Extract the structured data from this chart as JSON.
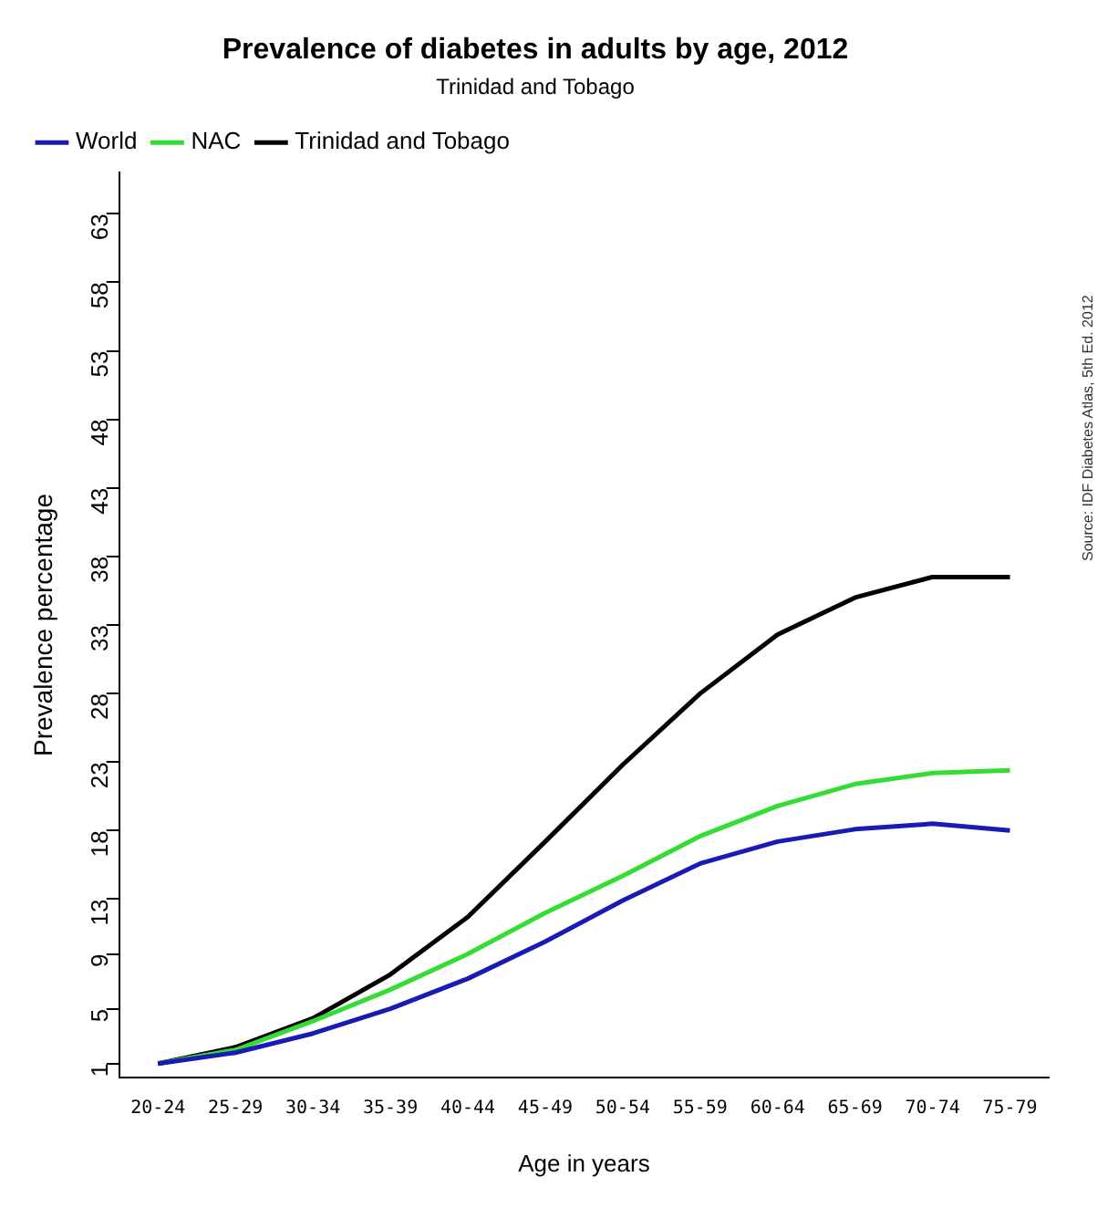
{
  "chart_data": {
    "type": "line",
    "title": "Prevalence of diabetes in adults by age, 2012",
    "subtitle": "Trinidad and Tobago",
    "xlabel": "Age in years",
    "ylabel": "Prevalence percentage",
    "annotations": [
      "Source: IDF Diabetes Atlas, 5th Ed. 2012"
    ],
    "categories": [
      "20-24",
      "25-29",
      "30-34",
      "35-39",
      "40-44",
      "45-49",
      "50-54",
      "55-59",
      "60-64",
      "65-69",
      "70-74",
      "75-79"
    ],
    "series": [
      {
        "name": "World",
        "color": "#1a1ab4",
        "values": [
          1.0,
          1.8,
          3.2,
          5.0,
          7.2,
          9.9,
          12.9,
          15.6,
          17.2,
          18.1,
          18.5,
          18.0
        ]
      },
      {
        "name": "NAC",
        "color": "#33dd33",
        "values": [
          1.0,
          2.0,
          4.1,
          6.4,
          9.0,
          12.0,
          14.7,
          17.6,
          19.8,
          21.4,
          22.2,
          22.4
        ]
      },
      {
        "name": "Trinidad and Tobago",
        "color": "#000000",
        "values": [
          1.0,
          2.2,
          4.3,
          7.5,
          11.7,
          17.2,
          22.8,
          28.0,
          32.3,
          35.0,
          36.5,
          36.5
        ]
      }
    ],
    "ylim": [
      0,
      66
    ],
    "yticks": [
      1,
      5,
      9,
      13,
      18,
      23,
      28,
      33,
      38,
      43,
      48,
      53,
      58,
      63
    ],
    "grid": false,
    "legend": "top left",
    "marker": "none",
    "line_style": "solid"
  }
}
